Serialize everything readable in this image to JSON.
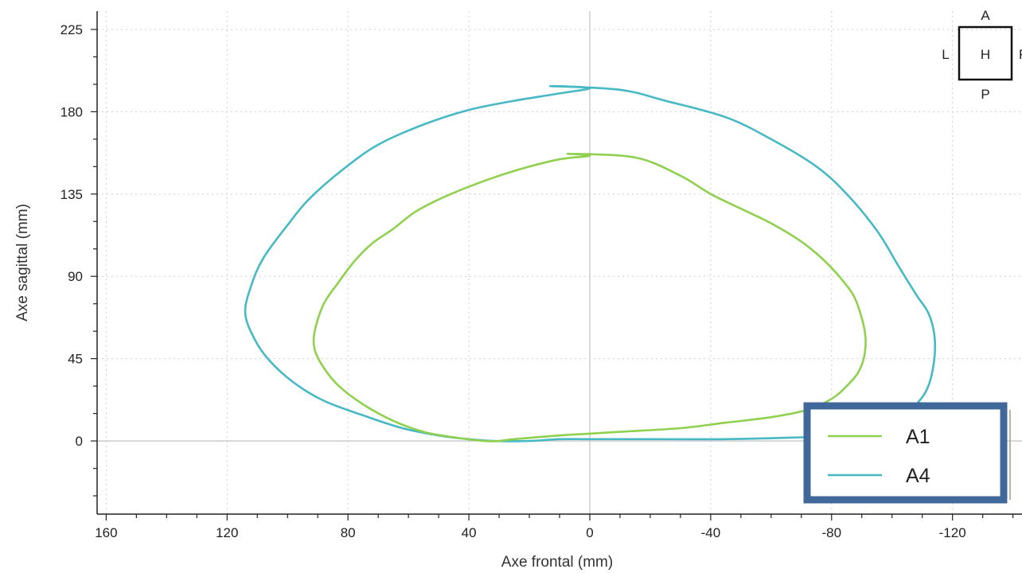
{
  "chart_data": {
    "type": "line",
    "xlabel": "Axe frontal (mm)",
    "ylabel": "Axe sagittal (mm)",
    "x_ticks": [
      160,
      120,
      80,
      40,
      0,
      -40,
      -80,
      -120
    ],
    "y_ticks": [
      0,
      45,
      90,
      135,
      180,
      225
    ],
    "xlim": [
      163,
      -143
    ],
    "ylim": [
      -40,
      235
    ],
    "x_reversed": true,
    "grid": true,
    "legend_position": "bottom-right",
    "orientation_marker": {
      "top": "A",
      "left": "L",
      "center": "H",
      "bottom": "P",
      "right": "R"
    },
    "series": [
      {
        "name": "A1",
        "color": "#8fd14f",
        "x": [
          7,
          -15,
          -30,
          -40,
          -50,
          -60,
          -70,
          -78,
          -84,
          -88,
          -91,
          -91,
          -89,
          -85,
          -80,
          -72,
          -60,
          -45,
          -30,
          -10,
          0,
          10,
          25,
          30,
          35,
          45,
          55,
          65,
          75,
          83,
          88,
          91,
          91,
          88,
          83,
          78,
          72,
          65,
          58,
          50,
          40,
          30,
          20,
          10,
          0,
          7
        ],
        "y": [
          157,
          155,
          145,
          135,
          127,
          119,
          109,
          98,
          87,
          77,
          60,
          48,
          38,
          30,
          23,
          17,
          13,
          10,
          7,
          5,
          4,
          3,
          1,
          0,
          0,
          2,
          5,
          11,
          20,
          30,
          40,
          50,
          60,
          75,
          87,
          98,
          108,
          116,
          125,
          132,
          139,
          145,
          150,
          154,
          156,
          157
        ]
      },
      {
        "name": "A4",
        "color": "#46b9c4",
        "x": [
          13,
          -10,
          -25,
          -45,
          -60,
          -75,
          -85,
          -95,
          -102,
          -108,
          -112,
          -114,
          -114,
          -112,
          -108,
          -100,
          -85,
          -70,
          -45,
          -20,
          0,
          10,
          20,
          32,
          40,
          50,
          62,
          75,
          88,
          98,
          106,
          111,
          114,
          112,
          108,
          100,
          93,
          82,
          70,
          55,
          40,
          25,
          10,
          0,
          13
        ],
        "y": [
          194,
          192,
          186,
          177,
          165,
          150,
          135,
          115,
          96,
          80,
          70,
          58,
          45,
          30,
          20,
          8,
          3,
          2,
          1,
          1,
          1,
          1,
          0,
          0,
          1,
          3,
          7,
          14,
          22,
          32,
          44,
          56,
          70,
          85,
          100,
          118,
          132,
          148,
          162,
          173,
          181,
          186,
          190,
          193,
          194
        ]
      }
    ]
  }
}
